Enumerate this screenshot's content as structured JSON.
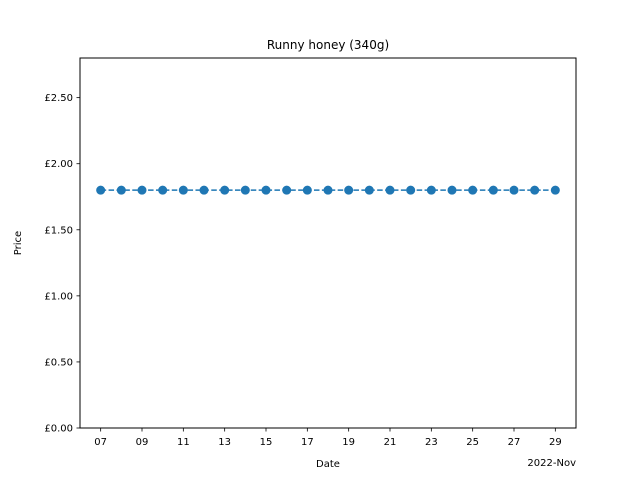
{
  "chart_data": {
    "type": "line",
    "title": "Runny honey (340g)",
    "xlabel": "Date",
    "ylabel": "Price",
    "x_offset_label": "2022-Nov",
    "x_tick_labels": [
      "07",
      "09",
      "11",
      "13",
      "15",
      "17",
      "19",
      "21",
      "23",
      "25",
      "27",
      "29"
    ],
    "x_tick_days": [
      7,
      9,
      11,
      13,
      15,
      17,
      19,
      21,
      23,
      25,
      27,
      29
    ],
    "y_tick_labels": [
      "£0.00",
      "£0.50",
      "£1.00",
      "£1.50",
      "£2.00",
      "£2.50"
    ],
    "y_tick_values": [
      0,
      0.5,
      1.0,
      1.5,
      2.0,
      2.5
    ],
    "xlim": [
      "2022-11-06",
      "2022-11-30"
    ],
    "ylim": [
      0,
      2.8
    ],
    "series": [
      {
        "x": [
          "2022-11-07",
          "2022-11-08",
          "2022-11-09",
          "2022-11-10",
          "2022-11-11",
          "2022-11-12",
          "2022-11-13",
          "2022-11-14",
          "2022-11-15",
          "2022-11-16",
          "2022-11-17",
          "2022-11-18",
          "2022-11-19",
          "2022-11-20",
          "2022-11-21",
          "2022-11-22",
          "2022-11-23",
          "2022-11-24",
          "2022-11-25",
          "2022-11-26",
          "2022-11-27",
          "2022-11-28",
          "2022-11-29"
        ],
        "values": [
          1.8,
          1.8,
          1.8,
          1.8,
          1.8,
          1.8,
          1.8,
          1.8,
          1.8,
          1.8,
          1.8,
          1.8,
          1.8,
          1.8,
          1.8,
          1.8,
          1.8,
          1.8,
          1.8,
          1.8,
          1.8,
          1.8,
          1.8
        ],
        "color": "#1f77b4",
        "line_style": "dashed",
        "marker": "circle"
      }
    ],
    "grid": false,
    "legend": "none"
  }
}
